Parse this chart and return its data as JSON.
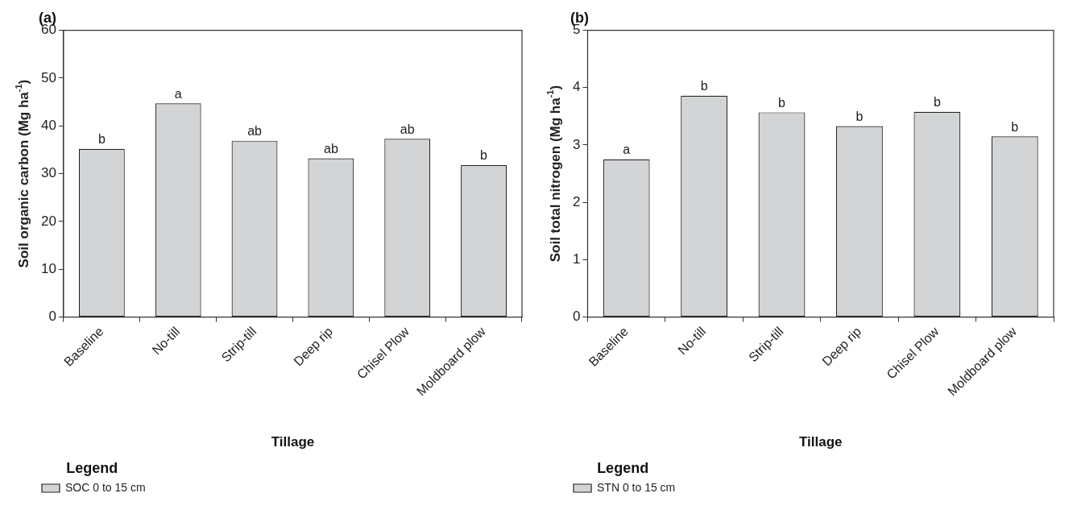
{
  "chart_data": [
    {
      "type": "bar",
      "title": "(a)",
      "xlabel": "Tillage",
      "ylabel": "Soil organic carbon (Mg ha$^{-1}$)",
      "categories": [
        "Baseline",
        "No-till",
        "Strip-till",
        "Deep rip",
        "Chisel Plow",
        "Moldboard plow"
      ],
      "series": [
        {
          "name": "SOC 0 to 15 cm",
          "color": "#d3d4d6",
          "values": [
            35.2,
            44.7,
            36.9,
            33.2,
            37.3,
            31.8
          ],
          "value_labels": [
            "b",
            "a",
            "ab",
            "ab",
            "ab",
            "b"
          ]
        }
      ],
      "ylim": [
        0,
        60
      ],
      "yticks": [
        0,
        10,
        20,
        30,
        40,
        50,
        60
      ],
      "grid": false,
      "legend": "bottom left",
      "legend_title": "Legend"
    },
    {
      "type": "bar",
      "title": "(b)",
      "xlabel": "Tillage",
      "ylabel": "Soil total nitrogen (Mg ha$^{-1}$)",
      "categories": [
        "Baseline",
        "No-till",
        "Strip-till",
        "Deep rip",
        "Chisel Plow",
        "Moldboard plow"
      ],
      "series": [
        {
          "name": "STN 0 to 15 cm",
          "color": "#d3d4d6",
          "values": [
            2.75,
            3.86,
            3.57,
            3.33,
            3.58,
            3.15
          ],
          "value_labels": [
            "a",
            "b",
            "b",
            "b",
            "b",
            "b"
          ]
        }
      ],
      "ylim": [
        0,
        5
      ],
      "yticks": [
        0,
        1,
        2,
        3,
        4,
        5
      ],
      "grid": false,
      "legend": "bottom left",
      "legend_title": "Legend"
    }
  ]
}
